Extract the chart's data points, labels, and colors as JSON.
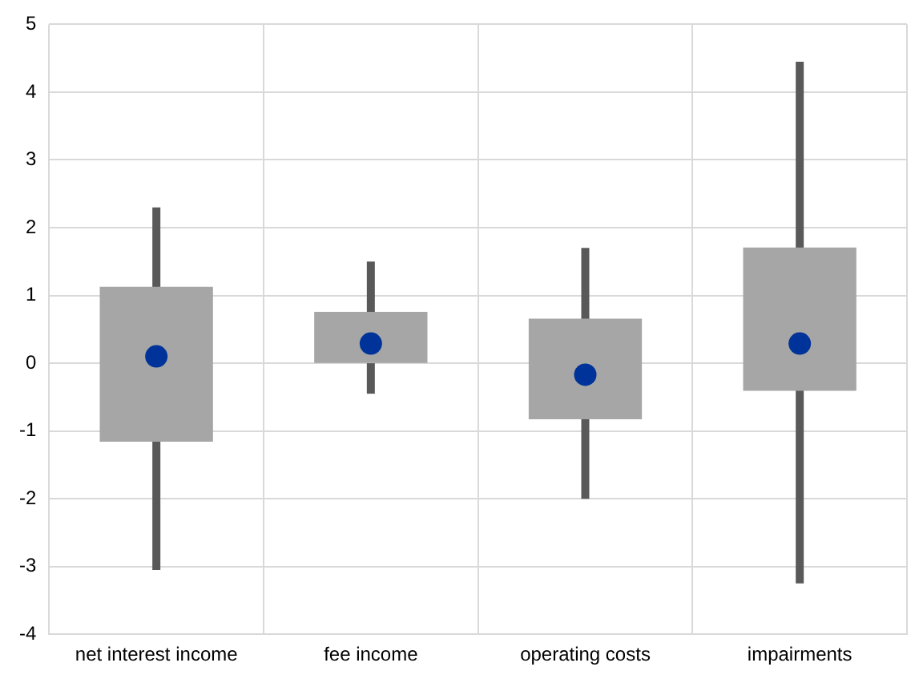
{
  "chart_data": {
    "type": "box",
    "categories": [
      "net interest income",
      "fee income",
      "operating costs",
      "impairments"
    ],
    "boxes": [
      {
        "low": -3.05,
        "q1": -1.15,
        "median": 0.1,
        "q3": 1.12,
        "high": 2.3
      },
      {
        "low": -0.45,
        "q1": 0,
        "median": 0.29,
        "q3": 0.75,
        "high": 1.5
      },
      {
        "low": -2,
        "q1": -0.82,
        "median": -0.17,
        "q3": 0.65,
        "high": 1.7
      },
      {
        "low": -3.25,
        "q1": -0.4,
        "median": 0.29,
        "q3": 1.7,
        "high": 4.45
      }
    ],
    "color": "#a6a6a6",
    "ylim": [
      -4,
      5
    ],
    "yticks": [
      -4,
      -3,
      -2,
      -1,
      0,
      1,
      2,
      3,
      4,
      5
    ],
    "grid": true,
    "legend": false
  }
}
